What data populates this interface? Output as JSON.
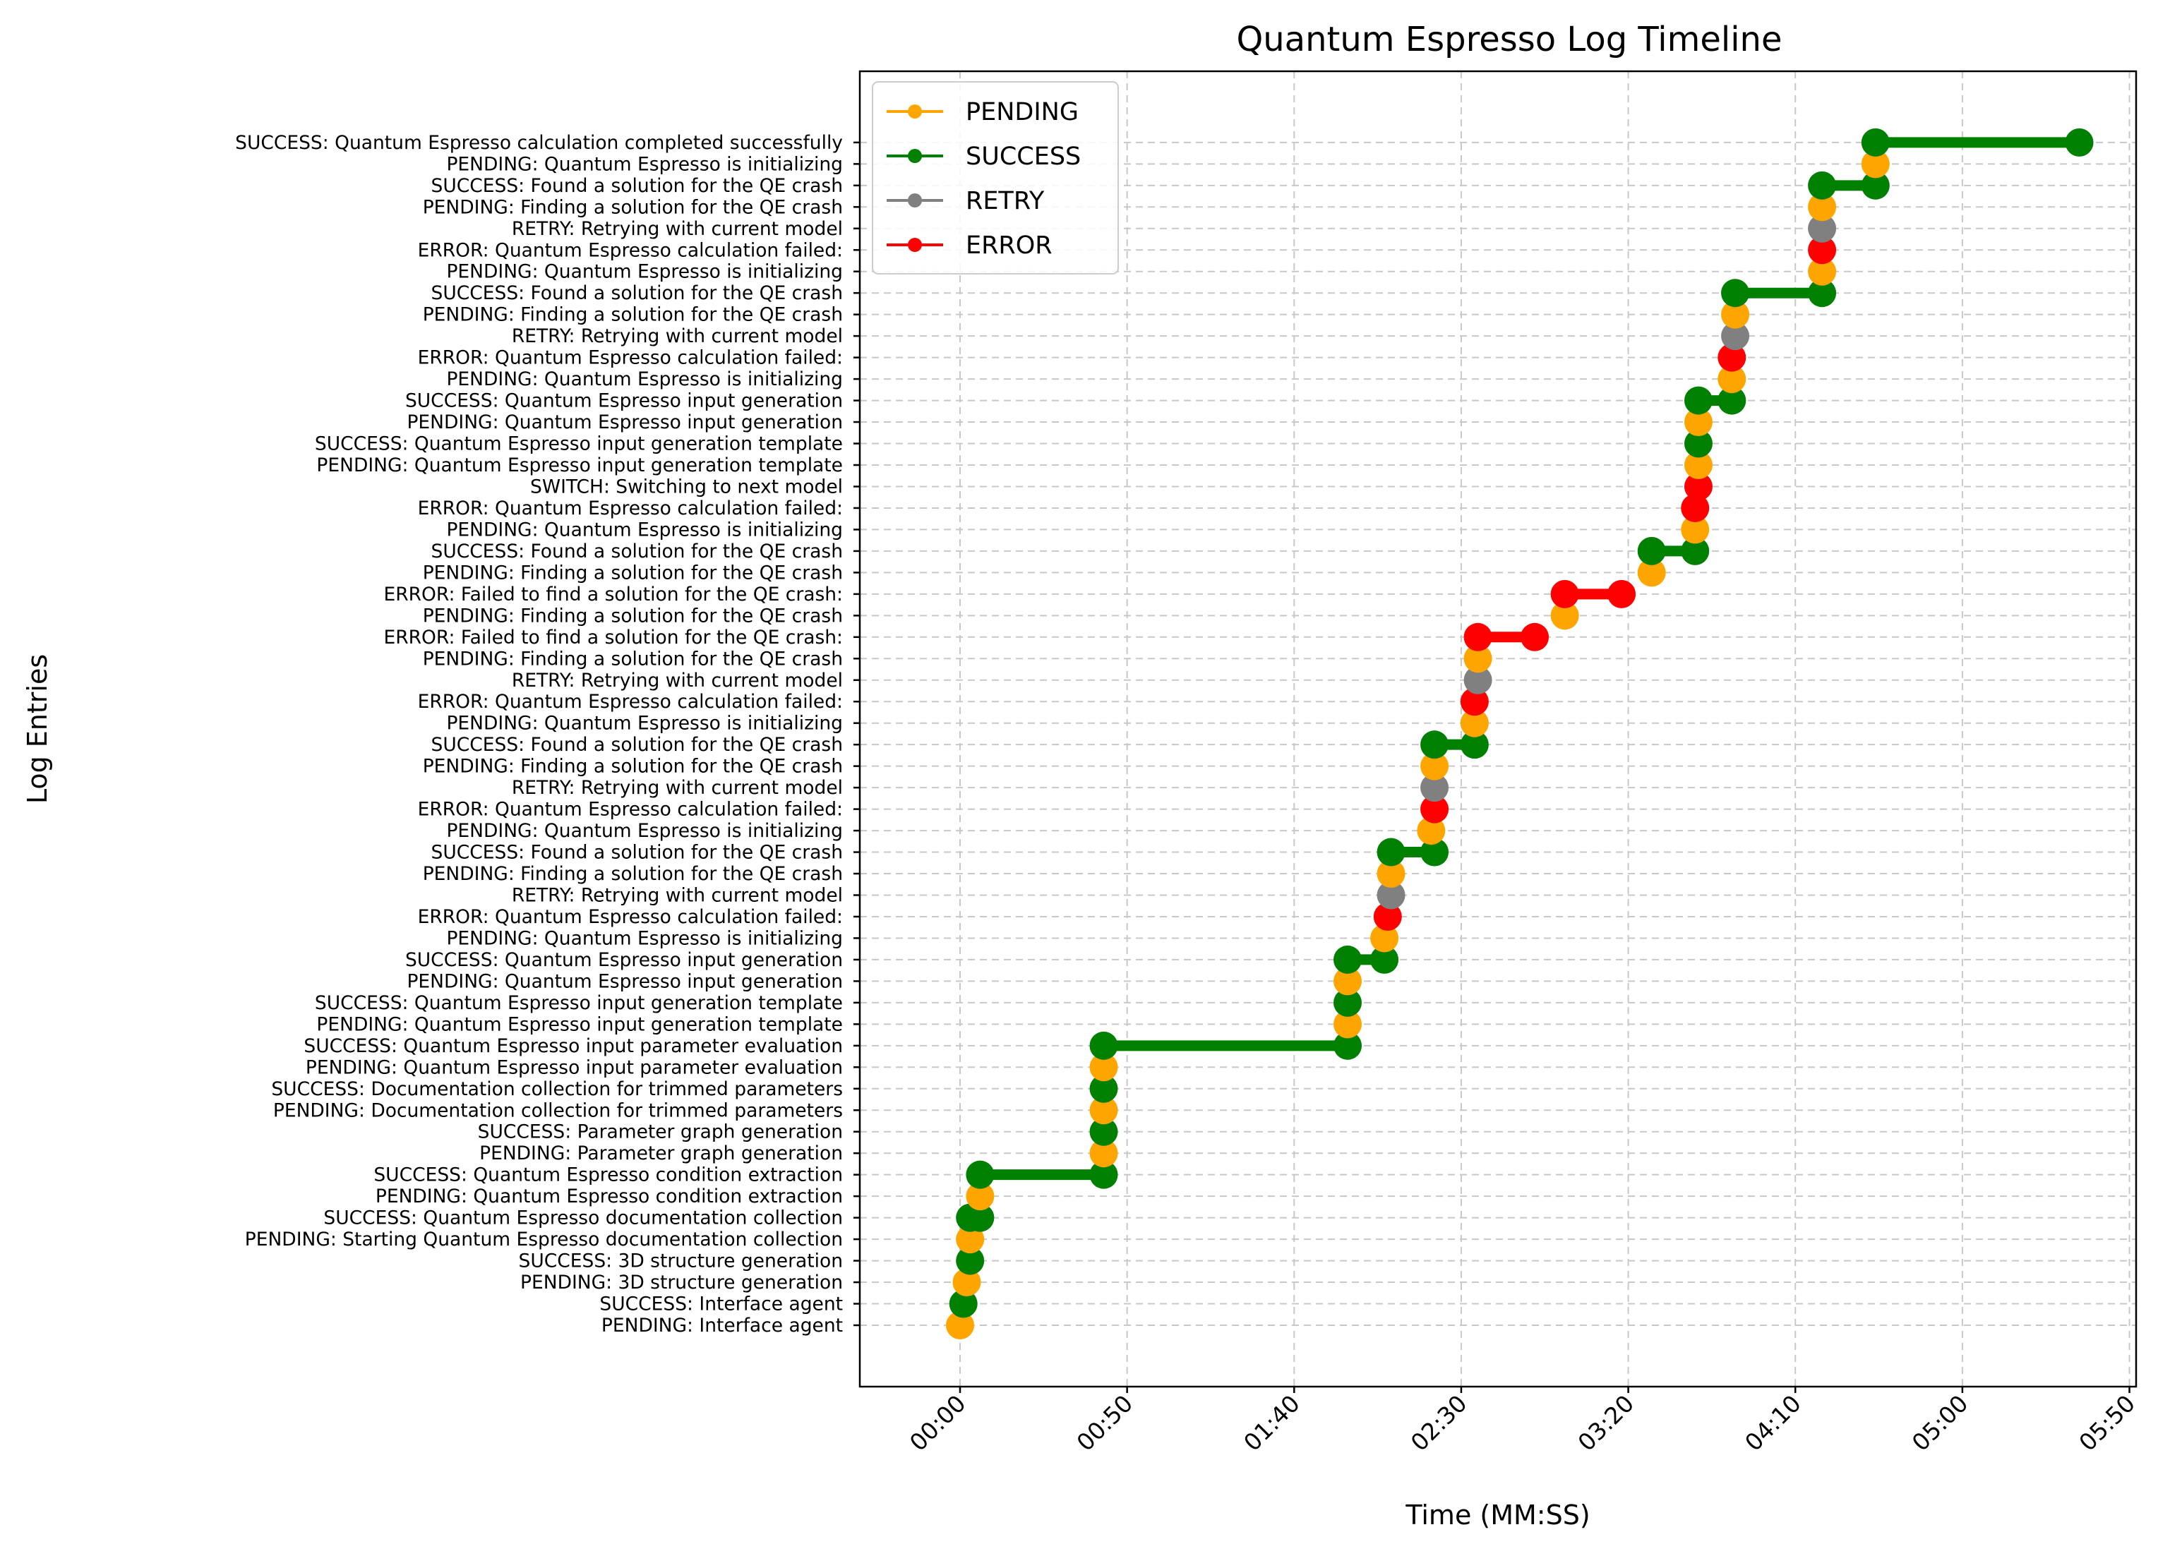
{
  "chart_data": {
    "type": "line",
    "title": "Quantum Espresso Log Timeline",
    "xlabel": "Time (MM:SS)",
    "ylabel": "Log Entries",
    "xlim": [
      -30,
      352
    ],
    "x_ticks": [
      {
        "value": 0,
        "label": "00:00"
      },
      {
        "value": 50,
        "label": "00:50"
      },
      {
        "value": 100,
        "label": "01:40"
      },
      {
        "value": 150,
        "label": "02:30"
      },
      {
        "value": 200,
        "label": "03:20"
      },
      {
        "value": 250,
        "label": "04:10"
      },
      {
        "value": 300,
        "label": "05:00"
      },
      {
        "value": 350,
        "label": "05:50"
      }
    ],
    "grid": true,
    "legend_position": "top-left",
    "legend": [
      {
        "label": "PENDING",
        "color": "#ffa500"
      },
      {
        "label": "SUCCESS",
        "color": "#008000"
      },
      {
        "label": "RETRY",
        "color": "#808080"
      },
      {
        "label": "ERROR",
        "color": "#ff0000"
      }
    ],
    "status_colors": {
      "PENDING": "#ffa500",
      "SUCCESS": "#008000",
      "RETRY": "#808080",
      "ERROR": "#ff0000",
      "SWITCH": "#ff0000"
    },
    "entries": [
      {
        "label": "PENDING: Interface agent",
        "status": "PENDING",
        "start": 0,
        "end": 0
      },
      {
        "label": "SUCCESS: Interface agent",
        "status": "SUCCESS",
        "start": 1,
        "end": 1
      },
      {
        "label": "PENDING: 3D structure generation",
        "status": "PENDING",
        "start": 2,
        "end": 2
      },
      {
        "label": "SUCCESS: 3D structure generation",
        "status": "SUCCESS",
        "start": 3,
        "end": 3
      },
      {
        "label": "PENDING: Starting Quantum Espresso documentation collection",
        "status": "PENDING",
        "start": 3,
        "end": 3
      },
      {
        "label": "SUCCESS: Quantum Espresso documentation collection",
        "status": "SUCCESS",
        "start": 3,
        "end": 6
      },
      {
        "label": "PENDING: Quantum Espresso condition extraction",
        "status": "PENDING",
        "start": 6,
        "end": 6
      },
      {
        "label": "SUCCESS: Quantum Espresso condition extraction",
        "status": "SUCCESS",
        "start": 6,
        "end": 43
      },
      {
        "label": "PENDING: Parameter graph generation",
        "status": "PENDING",
        "start": 43,
        "end": 43
      },
      {
        "label": "SUCCESS: Parameter graph generation",
        "status": "SUCCESS",
        "start": 43,
        "end": 43
      },
      {
        "label": "PENDING: Documentation collection for trimmed parameters",
        "status": "PENDING",
        "start": 43,
        "end": 43
      },
      {
        "label": "SUCCESS: Documentation collection for trimmed parameters",
        "status": "SUCCESS",
        "start": 43,
        "end": 43
      },
      {
        "label": "PENDING: Quantum Espresso input parameter evaluation",
        "status": "PENDING",
        "start": 43,
        "end": 43
      },
      {
        "label": "SUCCESS: Quantum Espresso input parameter evaluation",
        "status": "SUCCESS",
        "start": 43,
        "end": 116
      },
      {
        "label": "PENDING: Quantum Espresso input generation template",
        "status": "PENDING",
        "start": 116,
        "end": 116
      },
      {
        "label": "SUCCESS: Quantum Espresso input generation template",
        "status": "SUCCESS",
        "start": 116,
        "end": 116
      },
      {
        "label": "PENDING: Quantum Espresso input generation",
        "status": "PENDING",
        "start": 116,
        "end": 116
      },
      {
        "label": "SUCCESS: Quantum Espresso input generation",
        "status": "SUCCESS",
        "start": 116,
        "end": 127
      },
      {
        "label": "PENDING: Quantum Espresso is initializing",
        "status": "PENDING",
        "start": 127,
        "end": 127
      },
      {
        "label": "ERROR: Quantum Espresso calculation failed: ",
        "status": "ERROR",
        "start": 128,
        "end": 128
      },
      {
        "label": "RETRY: Retrying with current model",
        "status": "RETRY",
        "start": 129,
        "end": 129
      },
      {
        "label": "PENDING: Finding a solution for the QE crash",
        "status": "PENDING",
        "start": 129,
        "end": 129
      },
      {
        "label": "SUCCESS: Found a solution for the QE crash",
        "status": "SUCCESS",
        "start": 129,
        "end": 142
      },
      {
        "label": "PENDING: Quantum Espresso is initializing",
        "status": "PENDING",
        "start": 141,
        "end": 141
      },
      {
        "label": "ERROR: Quantum Espresso calculation failed: ",
        "status": "ERROR",
        "start": 142,
        "end": 142
      },
      {
        "label": "RETRY: Retrying with current model",
        "status": "RETRY",
        "start": 142,
        "end": 142
      },
      {
        "label": "PENDING: Finding a solution for the QE crash",
        "status": "PENDING",
        "start": 142,
        "end": 142
      },
      {
        "label": "SUCCESS: Found a solution for the QE crash",
        "status": "SUCCESS",
        "start": 142,
        "end": 154
      },
      {
        "label": "PENDING: Quantum Espresso is initializing",
        "status": "PENDING",
        "start": 154,
        "end": 154
      },
      {
        "label": "ERROR: Quantum Espresso calculation failed: ",
        "status": "ERROR",
        "start": 154,
        "end": 154
      },
      {
        "label": "RETRY: Retrying with current model",
        "status": "RETRY",
        "start": 155,
        "end": 155
      },
      {
        "label": "PENDING: Finding a solution for the QE crash",
        "status": "PENDING",
        "start": 155,
        "end": 155
      },
      {
        "label": "ERROR: Failed to find a solution for the QE crash: ",
        "status": "ERROR",
        "start": 155,
        "end": 172
      },
      {
        "label": "PENDING: Finding a solution for the QE crash",
        "status": "PENDING",
        "start": 181,
        "end": 181
      },
      {
        "label": "ERROR: Failed to find a solution for the QE crash: ",
        "status": "ERROR",
        "start": 181,
        "end": 198
      },
      {
        "label": "PENDING: Finding a solution for the QE crash",
        "status": "PENDING",
        "start": 207,
        "end": 207
      },
      {
        "label": "SUCCESS: Found a solution for the QE crash",
        "status": "SUCCESS",
        "start": 207,
        "end": 220
      },
      {
        "label": "PENDING: Quantum Espresso is initializing",
        "status": "PENDING",
        "start": 220,
        "end": 220
      },
      {
        "label": "ERROR: Quantum Espresso calculation failed: ",
        "status": "ERROR",
        "start": 220,
        "end": 220
      },
      {
        "label": "SWITCH: Switching to next model",
        "status": "SWITCH",
        "start": 221,
        "end": 221
      },
      {
        "label": "PENDING: Quantum Espresso input generation template",
        "status": "PENDING",
        "start": 221,
        "end": 221
      },
      {
        "label": "SUCCESS: Quantum Espresso input generation template",
        "status": "SUCCESS",
        "start": 221,
        "end": 221
      },
      {
        "label": "PENDING: Quantum Espresso input generation",
        "status": "PENDING",
        "start": 221,
        "end": 221
      },
      {
        "label": "SUCCESS: Quantum Espresso input generation",
        "status": "SUCCESS",
        "start": 221,
        "end": 231
      },
      {
        "label": "PENDING: Quantum Espresso is initializing",
        "status": "PENDING",
        "start": 231,
        "end": 231
      },
      {
        "label": "ERROR: Quantum Espresso calculation failed: ",
        "status": "ERROR",
        "start": 231,
        "end": 231
      },
      {
        "label": "RETRY: Retrying with current model",
        "status": "RETRY",
        "start": 232,
        "end": 232
      },
      {
        "label": "PENDING: Finding a solution for the QE crash",
        "status": "PENDING",
        "start": 232,
        "end": 232
      },
      {
        "label": "SUCCESS: Found a solution for the QE crash",
        "status": "SUCCESS",
        "start": 232,
        "end": 258
      },
      {
        "label": "PENDING: Quantum Espresso is initializing",
        "status": "PENDING",
        "start": 258,
        "end": 258
      },
      {
        "label": "ERROR: Quantum Espresso calculation failed: ",
        "status": "ERROR",
        "start": 258,
        "end": 258
      },
      {
        "label": "RETRY: Retrying with current model",
        "status": "RETRY",
        "start": 258,
        "end": 258
      },
      {
        "label": "PENDING: Finding a solution for the QE crash",
        "status": "PENDING",
        "start": 258,
        "end": 258
      },
      {
        "label": "SUCCESS: Found a solution for the QE crash",
        "status": "SUCCESS",
        "start": 258,
        "end": 274
      },
      {
        "label": "PENDING: Quantum Espresso is initializing",
        "status": "PENDING",
        "start": 274,
        "end": 274
      },
      {
        "label": "SUCCESS: Quantum Espresso calculation completed successfully",
        "status": "SUCCESS",
        "start": 274,
        "end": 335
      }
    ]
  }
}
